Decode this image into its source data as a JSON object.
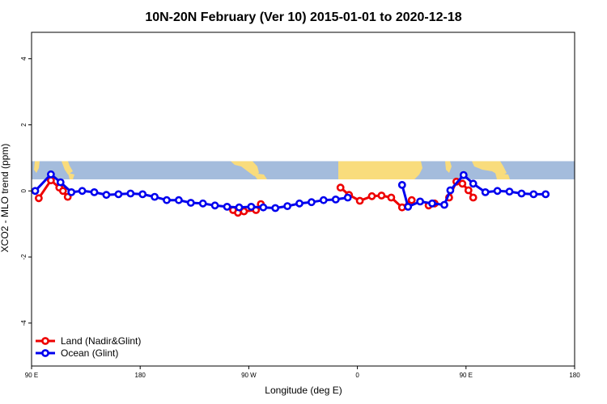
{
  "chart_data": {
    "type": "line",
    "title": "10N-20N February (Ver 10)   2015-01-01 to 2020-12-18",
    "xlabel": "Longitude (deg E)",
    "ylabel": "XCO2 - MLO trend (ppm)",
    "xlim": [
      90,
      540
    ],
    "ylim": [
      -5.3,
      4.8
    ],
    "x_ticks": [
      {
        "value": 90,
        "label": "90 E"
      },
      {
        "value": 180,
        "label": "180"
      },
      {
        "value": 270,
        "label": "90 W"
      },
      {
        "value": 360,
        "label": "0"
      },
      {
        "value": 450,
        "label": "90 E"
      },
      {
        "value": 540,
        "label": "180"
      }
    ],
    "y_ticks": [
      {
        "value": 4,
        "label": "4"
      },
      {
        "value": 2,
        "label": "2"
      },
      {
        "value": 0,
        "label": "0"
      },
      {
        "value": -2,
        "label": "-2"
      },
      {
        "value": -4,
        "label": "-4"
      }
    ],
    "legend_position": "bottom-left",
    "grid": false,
    "map_strip": {
      "y_range": [
        0.35,
        0.9
      ],
      "ocean_color": "#a4bcdc",
      "land_color": "#f9dc7c"
    },
    "series": [
      {
        "name": "Land (Nadir&Glint)",
        "color": "#ee0000",
        "segments": [
          [
            [
              96,
              -0.22
            ],
            [
              106,
              0.32
            ],
            [
              113,
              0.1
            ],
            [
              116,
              0.0
            ],
            [
              120,
              -0.18
            ]
          ],
          [
            [
              257,
              -0.58
            ],
            [
              261,
              -0.66
            ],
            [
              266,
              -0.62
            ],
            [
              276,
              -0.58
            ],
            [
              280,
              -0.4
            ]
          ],
          [
            [
              346,
              0.1
            ],
            [
              353,
              -0.12
            ],
            [
              362,
              -0.3
            ],
            [
              372,
              -0.16
            ],
            [
              380,
              -0.14
            ],
            [
              388,
              -0.2
            ],
            [
              397,
              -0.5
            ],
            [
              405,
              -0.28
            ]
          ],
          [
            [
              419,
              -0.44
            ],
            [
              424,
              -0.38
            ]
          ],
          [
            [
              436,
              -0.2
            ],
            [
              442,
              0.28
            ],
            [
              447,
              0.22
            ],
            [
              452,
              0.02
            ],
            [
              456,
              -0.2
            ]
          ]
        ]
      },
      {
        "name": "Ocean (Glint)",
        "color": "#0000ee",
        "segments": [
          [
            [
              93,
              0.0
            ],
            [
              106,
              0.5
            ],
            [
              114,
              0.26
            ],
            [
              123,
              -0.04
            ],
            [
              132,
              0.0
            ],
            [
              142,
              -0.04
            ],
            [
              152,
              -0.12
            ],
            [
              162,
              -0.1
            ],
            [
              172,
              -0.08
            ],
            [
              182,
              -0.1
            ],
            [
              192,
              -0.18
            ],
            [
              202,
              -0.28
            ],
            [
              212,
              -0.28
            ],
            [
              222,
              -0.36
            ],
            [
              232,
              -0.38
            ],
            [
              242,
              -0.44
            ],
            [
              252,
              -0.48
            ],
            [
              262,
              -0.5
            ],
            [
              272,
              -0.48
            ],
            [
              282,
              -0.5
            ],
            [
              292,
              -0.52
            ],
            [
              302,
              -0.46
            ],
            [
              312,
              -0.38
            ],
            [
              322,
              -0.34
            ],
            [
              332,
              -0.28
            ],
            [
              342,
              -0.26
            ],
            [
              352,
              -0.2
            ]
          ],
          [
            [
              397,
              0.18
            ],
            [
              402,
              -0.48
            ],
            [
              412,
              -0.32
            ],
            [
              422,
              -0.38
            ],
            [
              432,
              -0.42
            ],
            [
              437,
              0.02
            ],
            [
              448,
              0.48
            ],
            [
              456,
              0.22
            ],
            [
              466,
              -0.04
            ],
            [
              476,
              0.0
            ],
            [
              486,
              -0.02
            ],
            [
              496,
              -0.08
            ],
            [
              506,
              -0.1
            ],
            [
              516,
              -0.1
            ]
          ]
        ]
      }
    ]
  }
}
